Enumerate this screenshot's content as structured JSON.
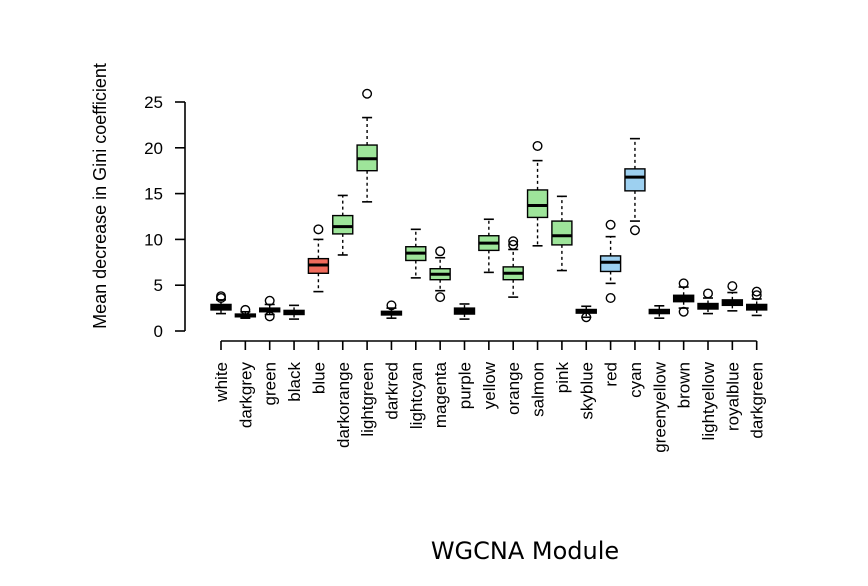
{
  "chart_data": {
    "type": "boxplot",
    "xlabel": "WGCNA Module",
    "ylabel": "Mean decrease in Gini coefficient",
    "ylim": [
      0,
      25
    ],
    "yticks": [
      0,
      5,
      10,
      15,
      20,
      25
    ],
    "grid": false,
    "categories": [
      "white",
      "darkgrey",
      "green",
      "black",
      "blue",
      "darkorange",
      "lightgreen",
      "darkred",
      "lightcyan",
      "magenta",
      "purple",
      "yellow",
      "orange",
      "salmon",
      "pink",
      "skyblue",
      "red",
      "cyan",
      "greenyellow",
      "brown",
      "lightyellow",
      "royalblue",
      "darkgreen"
    ],
    "boxes": [
      {
        "name": "white",
        "fill": "#000000",
        "whisker_low": 1.9,
        "q1": 2.3,
        "median": 2.55,
        "q3": 2.9,
        "whisker_high": 3.4,
        "outliers": [
          3.6,
          3.8
        ]
      },
      {
        "name": "darkgrey",
        "fill": "#000000",
        "whisker_low": 1.4,
        "q1": 1.55,
        "median": 1.7,
        "q3": 1.85,
        "whisker_high": 2.1,
        "outliers": [
          2.3
        ]
      },
      {
        "name": "green",
        "fill": "#000000",
        "whisker_low": 1.8,
        "q1": 2.1,
        "median": 2.3,
        "q3": 2.5,
        "whisker_high": 2.9,
        "outliers": [
          1.6,
          3.3
        ]
      },
      {
        "name": "black",
        "fill": "#000000",
        "whisker_low": 1.3,
        "q1": 1.8,
        "median": 2.0,
        "q3": 2.25,
        "whisker_high": 2.8,
        "outliers": []
      },
      {
        "name": "blue",
        "fill": "#f06b5c",
        "whisker_low": 4.3,
        "q1": 6.3,
        "median": 7.2,
        "q3": 7.9,
        "whisker_high": 10.0,
        "outliers": [
          11.1
        ]
      },
      {
        "name": "darkorange",
        "fill": "#9ee59a",
        "whisker_low": 8.3,
        "q1": 10.6,
        "median": 11.4,
        "q3": 12.6,
        "whisker_high": 14.8,
        "outliers": []
      },
      {
        "name": "lightgreen",
        "fill": "#9ee59a",
        "whisker_low": 14.1,
        "q1": 17.5,
        "median": 18.8,
        "q3": 20.3,
        "whisker_high": 23.3,
        "outliers": [
          25.9
        ]
      },
      {
        "name": "darkred",
        "fill": "#000000",
        "whisker_low": 1.4,
        "q1": 1.75,
        "median": 1.95,
        "q3": 2.15,
        "whisker_high": 2.5,
        "outliers": [
          2.8
        ]
      },
      {
        "name": "lightcyan",
        "fill": "#9ee59a",
        "whisker_low": 5.8,
        "q1": 7.7,
        "median": 8.5,
        "q3": 9.2,
        "whisker_high": 11.1,
        "outliers": []
      },
      {
        "name": "magenta",
        "fill": "#9ee59a",
        "whisker_low": 4.4,
        "q1": 5.6,
        "median": 6.2,
        "q3": 6.8,
        "whisker_high": 8.0,
        "outliers": [
          3.7,
          8.7
        ]
      },
      {
        "name": "purple",
        "fill": "#000000",
        "whisker_low": 1.3,
        "q1": 1.85,
        "median": 2.1,
        "q3": 2.5,
        "whisker_high": 2.95,
        "outliers": []
      },
      {
        "name": "yellow",
        "fill": "#9ee59a",
        "whisker_low": 6.4,
        "q1": 8.8,
        "median": 9.6,
        "q3": 10.4,
        "whisker_high": 12.2,
        "outliers": []
      },
      {
        "name": "orange",
        "fill": "#9ee59a",
        "whisker_low": 3.7,
        "q1": 5.6,
        "median": 6.3,
        "q3": 7.0,
        "whisker_high": 8.9,
        "outliers": [
          9.4,
          9.8
        ]
      },
      {
        "name": "salmon",
        "fill": "#9ee59a",
        "whisker_low": 9.3,
        "q1": 12.4,
        "median": 13.7,
        "q3": 15.4,
        "whisker_high": 18.6,
        "outliers": [
          20.2
        ]
      },
      {
        "name": "pink",
        "fill": "#9ee59a",
        "whisker_low": 6.6,
        "q1": 9.4,
        "median": 10.4,
        "q3": 12.0,
        "whisker_high": 14.7,
        "outliers": []
      },
      {
        "name": "skyblue",
        "fill": "#000000",
        "whisker_low": 1.5,
        "q1": 1.95,
        "median": 2.15,
        "q3": 2.35,
        "whisker_high": 2.7,
        "outliers": [
          1.5
        ]
      },
      {
        "name": "red",
        "fill": "#9dd0f0",
        "whisker_low": 5.2,
        "q1": 6.5,
        "median": 7.5,
        "q3": 8.2,
        "whisker_high": 10.3,
        "outliers": [
          3.6,
          11.6
        ]
      },
      {
        "name": "cyan",
        "fill": "#9dd0f0",
        "whisker_low": 12.0,
        "q1": 15.3,
        "median": 16.8,
        "q3": 17.7,
        "whisker_high": 21.0,
        "outliers": [
          11.0
        ]
      },
      {
        "name": "greenyellow",
        "fill": "#000000",
        "whisker_low": 1.4,
        "q1": 1.9,
        "median": 2.15,
        "q3": 2.35,
        "whisker_high": 2.75,
        "outliers": []
      },
      {
        "name": "brown",
        "fill": "#000000",
        "whisker_low": 2.5,
        "q1": 3.2,
        "median": 3.55,
        "q3": 3.9,
        "whisker_high": 4.8,
        "outliers": [
          2.1,
          5.2
        ]
      },
      {
        "name": "lightyellow",
        "fill": "#000000",
        "whisker_low": 1.9,
        "q1": 2.4,
        "median": 2.7,
        "q3": 3.0,
        "whisker_high": 3.6,
        "outliers": [
          4.1
        ]
      },
      {
        "name": "royalblue",
        "fill": "#000000",
        "whisker_low": 2.2,
        "q1": 2.8,
        "median": 3.1,
        "q3": 3.4,
        "whisker_high": 4.2,
        "outliers": [
          4.9
        ]
      },
      {
        "name": "darkgreen",
        "fill": "#000000",
        "whisker_low": 1.7,
        "q1": 2.3,
        "median": 2.6,
        "q3": 2.9,
        "whisker_high": 3.5,
        "outliers": [
          3.9,
          4.3
        ]
      }
    ]
  }
}
